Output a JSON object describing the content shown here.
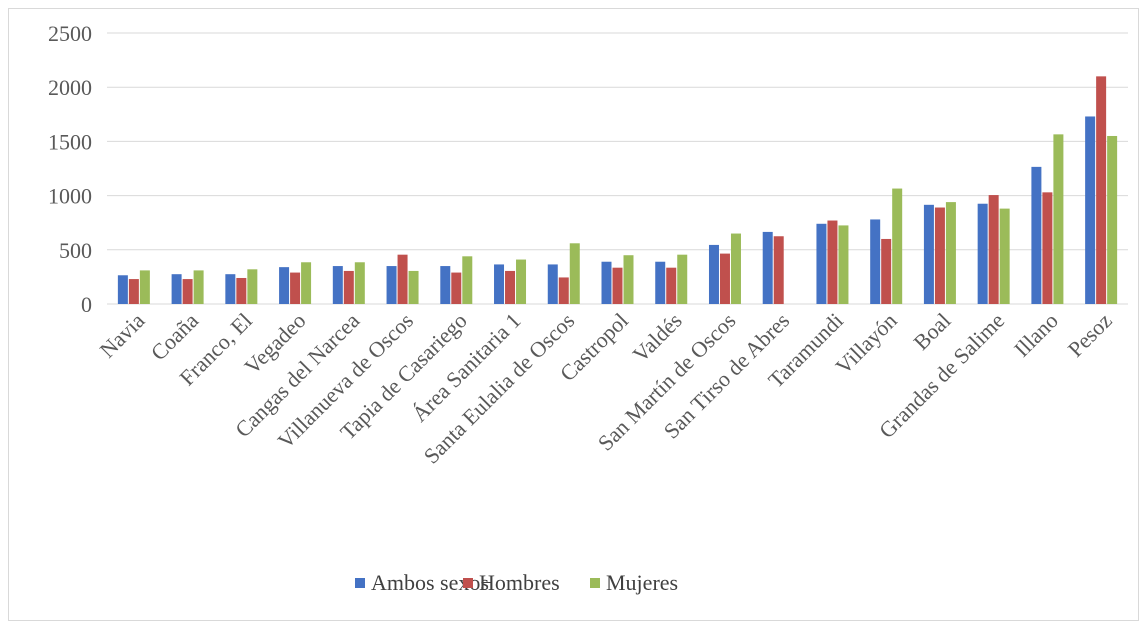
{
  "chart_data": {
    "type": "bar",
    "categories": [
      "Navia",
      "Coaña",
      "Franco, El",
      "Vegadeo",
      "Cangas del Narcea",
      "Villanueva de Oscos",
      "Tapia de Casariego",
      "Área Sanitaria 1",
      "Santa Eulalia de Oscos",
      "Castropol",
      "Valdés",
      "San Martín de Oscos",
      "San Tirso de Abres",
      "Taramundi",
      "Villayón",
      "Boal",
      "Grandas de Salime",
      "Illano",
      "Pesoz"
    ],
    "series": [
      {
        "name": "Ambos sexos",
        "color": "#4472c4",
        "values": [
          265,
          275,
          275,
          340,
          350,
          350,
          350,
          365,
          365,
          390,
          390,
          545,
          665,
          740,
          780,
          915,
          925,
          1265,
          1730
        ]
      },
      {
        "name": "Hombres",
        "color": "#c0504d",
        "values": [
          230,
          230,
          240,
          290,
          305,
          455,
          290,
          305,
          245,
          335,
          335,
          465,
          625,
          770,
          600,
          890,
          1005,
          1030,
          2100
        ]
      },
      {
        "name": "Mujeres",
        "color": "#9bbb59",
        "values": [
          310,
          310,
          320,
          385,
          385,
          305,
          440,
          410,
          560,
          450,
          455,
          650,
          null,
          725,
          1065,
          940,
          880,
          1565,
          1550
        ]
      }
    ],
    "yticks": [
      "0",
      "500",
      "1000",
      "1500",
      "2000",
      "2500"
    ],
    "ylim": [
      0,
      2500
    ],
    "grid": true,
    "legend_position": "bottom"
  }
}
